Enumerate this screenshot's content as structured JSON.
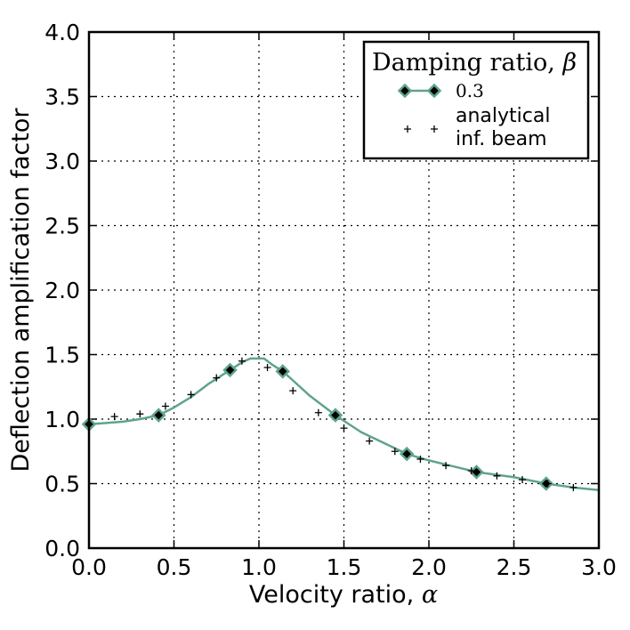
{
  "chart_data": {
    "type": "line",
    "xlabel_text": "Velocity ratio, ",
    "xlabel_symbol": "α",
    "ylabel": "Deflection amplification factor",
    "xlim": [
      0.0,
      3.0
    ],
    "ylim": [
      0.0,
      4.0
    ],
    "xticks": [
      "0.0",
      "0.5",
      "1.0",
      "1.5",
      "2.0",
      "2.5",
      "3.0"
    ],
    "yticks": [
      "0.0",
      "0.5",
      "1.0",
      "1.5",
      "2.0",
      "2.5",
      "3.0",
      "3.5",
      "4.0"
    ],
    "grid": true,
    "legend_placement": "top-right",
    "legend_title_text": "Damping ratio, ",
    "legend_title_symbol": "β",
    "colors": {
      "line": "#5fa48a",
      "marker_fill": "#000000",
      "analytical": "#000000"
    },
    "series": [
      {
        "name": "0.3",
        "style": "line-with-diamond-markers",
        "x": [
          0.0,
          0.1,
          0.2,
          0.3,
          0.41,
          0.5,
          0.6,
          0.7,
          0.83,
          0.9,
          0.95,
          1.03,
          1.08,
          1.14,
          1.2,
          1.3,
          1.45,
          1.6,
          1.87,
          2.0,
          2.28,
          2.5,
          2.69,
          2.85,
          3.0
        ],
        "y": [
          0.96,
          0.97,
          0.98,
          1.0,
          1.03,
          1.09,
          1.17,
          1.27,
          1.38,
          1.44,
          1.47,
          1.47,
          1.42,
          1.37,
          1.3,
          1.18,
          1.03,
          0.9,
          0.73,
          0.68,
          0.59,
          0.55,
          0.5,
          0.47,
          0.45
        ],
        "marker_x": [
          0.0,
          0.41,
          0.83,
          1.14,
          1.45,
          1.87,
          2.28,
          2.69
        ],
        "marker_y": [
          0.96,
          1.03,
          1.38,
          1.37,
          1.03,
          0.73,
          0.59,
          0.5
        ]
      },
      {
        "name": "analytical inf. beam",
        "name_lines": [
          "analytical",
          "inf. beam"
        ],
        "style": "plus-markers",
        "x": [
          0.15,
          0.3,
          0.45,
          0.6,
          0.75,
          0.9,
          1.05,
          1.2,
          1.35,
          1.5,
          1.65,
          1.8,
          1.95,
          2.1,
          2.25,
          2.4,
          2.55,
          2.7,
          2.85
        ],
        "y": [
          1.02,
          1.04,
          1.1,
          1.19,
          1.32,
          1.45,
          1.4,
          1.22,
          1.05,
          0.93,
          0.83,
          0.75,
          0.69,
          0.64,
          0.6,
          0.56,
          0.53,
          0.5,
          0.47
        ]
      }
    ]
  }
}
